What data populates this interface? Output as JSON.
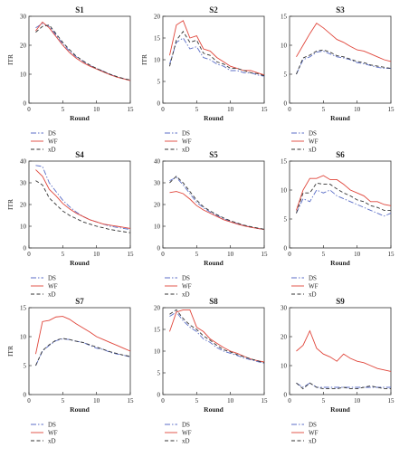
{
  "chart_data": [
    {
      "type": "line",
      "title": "S1",
      "xlabel": "Round",
      "ylabel": "ITR",
      "xlim": [
        0,
        15
      ],
      "ylim": [
        0,
        30
      ],
      "xticks": [
        0,
        5,
        10,
        15
      ],
      "yticks": [
        0,
        10,
        20,
        30
      ],
      "x": [
        1,
        2,
        3,
        4,
        5,
        6,
        7,
        8,
        9,
        10,
        11,
        12,
        13,
        14,
        15
      ],
      "series": [
        {
          "name": "DS",
          "values": [
            26,
            27.5,
            26.5,
            23.5,
            20.5,
            18,
            16,
            14.5,
            13,
            12,
            11,
            10,
            9,
            8.5,
            7.8
          ]
        },
        {
          "name": "WF",
          "values": [
            25,
            28,
            26,
            23,
            20,
            17.5,
            15.5,
            14,
            12.8,
            11.8,
            10.8,
            9.8,
            9,
            8.4,
            7.8
          ]
        },
        {
          "name": "xD",
          "values": [
            24.5,
            26.5,
            27,
            24,
            21,
            18.5,
            16.2,
            14.6,
            13.2,
            12,
            11,
            10,
            9.2,
            8.5,
            8
          ]
        }
      ]
    },
    {
      "type": "line",
      "title": "S2",
      "xlabel": "Round",
      "ylabel": "ITR",
      "xlim": [
        0,
        15
      ],
      "ylim": [
        0,
        20
      ],
      "xticks": [
        0,
        5,
        10,
        15
      ],
      "yticks": [
        0,
        5,
        10,
        15,
        20
      ],
      "x": [
        1,
        2,
        3,
        4,
        5,
        6,
        7,
        8,
        9,
        10,
        11,
        12,
        13,
        14,
        15
      ],
      "series": [
        {
          "name": "DS",
          "values": [
            9,
            14,
            15,
            12.5,
            13,
            10.5,
            10,
            9,
            8.5,
            7.5,
            7.5,
            7,
            7,
            6.5,
            6.2
          ]
        },
        {
          "name": "WF",
          "values": [
            11,
            18,
            19,
            15,
            15.5,
            12.5,
            12,
            10.5,
            9.5,
            8.5,
            8,
            7.5,
            7.5,
            7,
            6.5
          ]
        },
        {
          "name": "xD",
          "values": [
            8.5,
            14.5,
            16.5,
            14,
            14.5,
            11.5,
            11,
            9.5,
            9,
            8,
            8,
            7.5,
            7,
            6.8,
            6.3
          ]
        }
      ]
    },
    {
      "type": "line",
      "title": "S3",
      "xlabel": "Round",
      "ylabel": "",
      "xlim": [
        0,
        15
      ],
      "ylim": [
        0,
        15
      ],
      "xticks": [
        0,
        5,
        10,
        15
      ],
      "yticks": [
        0,
        5,
        10,
        15
      ],
      "x": [
        1,
        2,
        3,
        4,
        5,
        6,
        7,
        8,
        9,
        10,
        11,
        12,
        13,
        14,
        15
      ],
      "series": [
        {
          "name": "DS",
          "values": [
            5,
            7.5,
            8,
            8.8,
            9,
            8.5,
            8,
            7.8,
            7.5,
            7,
            6.8,
            6.5,
            6.2,
            6,
            6
          ]
        },
        {
          "name": "WF",
          "values": [
            8,
            10,
            12,
            13.8,
            13,
            12,
            11,
            10.5,
            9.8,
            9.2,
            9,
            8.5,
            8,
            7.5,
            7.2
          ]
        },
        {
          "name": "xD",
          "values": [
            5,
            7.8,
            8.3,
            9,
            9.2,
            8.8,
            8.2,
            8,
            7.6,
            7.2,
            7,
            6.6,
            6.4,
            6.2,
            6
          ]
        }
      ]
    },
    {
      "type": "line",
      "title": "S4",
      "xlabel": "Round",
      "ylabel": "ITR",
      "xlim": [
        0,
        15
      ],
      "ylim": [
        0,
        40
      ],
      "xticks": [
        0,
        5,
        10,
        15
      ],
      "yticks": [
        0,
        10,
        20,
        30,
        40
      ],
      "x": [
        1,
        2,
        3,
        4,
        5,
        6,
        7,
        8,
        9,
        10,
        11,
        12,
        13,
        14,
        15
      ],
      "series": [
        {
          "name": "DS",
          "values": [
            38,
            37.5,
            30,
            26,
            22,
            19,
            16.5,
            14.5,
            13,
            12,
            11,
            10,
            9.5,
            9,
            8.5
          ]
        },
        {
          "name": "WF",
          "values": [
            36,
            33,
            27,
            24,
            20.5,
            18,
            16,
            14.5,
            13,
            12,
            11,
            10.5,
            10,
            9.5,
            9
          ]
        },
        {
          "name": "xD",
          "values": [
            31,
            29,
            23,
            20,
            17,
            15,
            13.5,
            12,
            11,
            10,
            9.3,
            8.5,
            8,
            7.5,
            7
          ]
        }
      ]
    },
    {
      "type": "line",
      "title": "S5",
      "xlabel": "Round",
      "ylabel": "",
      "xlim": [
        0,
        15
      ],
      "ylim": [
        0,
        40
      ],
      "xticks": [
        0,
        5,
        10,
        15
      ],
      "yticks": [
        0,
        10,
        20,
        30,
        40
      ],
      "x": [
        1,
        2,
        3,
        4,
        5,
        6,
        7,
        8,
        9,
        10,
        11,
        12,
        13,
        14,
        15
      ],
      "series": [
        {
          "name": "DS",
          "values": [
            31,
            32.5,
            29,
            25,
            21,
            18.5,
            16.5,
            15,
            13.5,
            12.3,
            11.3,
            10.4,
            9.6,
            9,
            8.5
          ]
        },
        {
          "name": "WF",
          "values": [
            25.5,
            26,
            25,
            22.5,
            19.5,
            17.5,
            16,
            14.5,
            13,
            12,
            11,
            10.2,
            9.5,
            9,
            8.5
          ]
        },
        {
          "name": "xD",
          "values": [
            30,
            33,
            30,
            26,
            22,
            19,
            17,
            15.3,
            13.8,
            12.5,
            11.5,
            10.5,
            9.8,
            9.2,
            8.6
          ]
        }
      ]
    },
    {
      "type": "line",
      "title": "S6",
      "xlabel": "Round",
      "ylabel": "",
      "xlim": [
        0,
        15
      ],
      "ylim": [
        0,
        15
      ],
      "xticks": [
        0,
        5,
        10,
        15
      ],
      "yticks": [
        0,
        5,
        10,
        15
      ],
      "x": [
        1,
        2,
        3,
        4,
        5,
        6,
        7,
        8,
        9,
        10,
        11,
        12,
        13,
        14,
        15
      ],
      "series": [
        {
          "name": "DS",
          "values": [
            6,
            8.5,
            8,
            10,
            9.5,
            10,
            9,
            8.5,
            8,
            7.5,
            7,
            6.5,
            6,
            5.5,
            6
          ]
        },
        {
          "name": "WF",
          "values": [
            6.5,
            10,
            12,
            12,
            12.5,
            11.8,
            11.8,
            11,
            10,
            9.5,
            9,
            8,
            8,
            7.5,
            7.3
          ]
        },
        {
          "name": "xD",
          "values": [
            6,
            9.5,
            9.5,
            11.2,
            11,
            11,
            10.2,
            9.5,
            9,
            8.3,
            8,
            7.3,
            7,
            6.5,
            6.5
          ]
        }
      ]
    },
    {
      "type": "line",
      "title": "S7",
      "xlabel": "Round",
      "ylabel": "ITR",
      "xlim": [
        0,
        15
      ],
      "ylim": [
        0,
        15
      ],
      "xticks": [
        0,
        5,
        10,
        15
      ],
      "yticks": [
        0,
        5,
        10,
        15
      ],
      "x": [
        1,
        2,
        3,
        4,
        5,
        6,
        7,
        8,
        9,
        10,
        11,
        12,
        13,
        14,
        15
      ],
      "series": [
        {
          "name": "DS",
          "values": [
            5,
            7.5,
            8.5,
            9.3,
            9.6,
            9.5,
            9.2,
            9,
            8.5,
            8,
            7.8,
            7.3,
            7,
            6.8,
            6.5
          ]
        },
        {
          "name": "WF",
          "values": [
            7,
            12.6,
            12.8,
            13.4,
            13.5,
            13,
            12.2,
            11.5,
            10.8,
            10,
            9.5,
            9,
            8.5,
            8,
            7.5
          ]
        },
        {
          "name": "xD",
          "values": [
            5,
            7.6,
            8.6,
            9.4,
            9.7,
            9.5,
            9.2,
            9,
            8.6,
            8.2,
            7.8,
            7.4,
            7.1,
            6.8,
            6.6
          ]
        }
      ]
    },
    {
      "type": "line",
      "title": "S8",
      "xlabel": "Round",
      "ylabel": "",
      "xlim": [
        0,
        15
      ],
      "ylim": [
        0,
        20
      ],
      "xticks": [
        0,
        5,
        10,
        15
      ],
      "yticks": [
        0,
        5,
        10,
        15,
        20
      ],
      "x": [
        1,
        2,
        3,
        4,
        5,
        6,
        7,
        8,
        9,
        10,
        11,
        12,
        13,
        14,
        15
      ],
      "series": [
        {
          "name": "DS",
          "values": [
            18,
            19,
            17,
            15.5,
            14.5,
            12.8,
            12,
            10.8,
            10,
            9.5,
            9,
            8.4,
            8,
            7.6,
            7.2
          ]
        },
        {
          "name": "WF",
          "values": [
            14.5,
            19,
            19.5,
            19.5,
            15.5,
            14.5,
            12.8,
            11.8,
            10.8,
            10,
            9.5,
            8.8,
            8.2,
            7.8,
            7.5
          ]
        },
        {
          "name": "xD",
          "values": [
            18.5,
            19.5,
            17.5,
            16,
            15,
            13.5,
            12.5,
            11.3,
            10.3,
            9.8,
            9.2,
            8.7,
            8.2,
            7.8,
            7.3
          ]
        }
      ]
    },
    {
      "type": "line",
      "title": "S9",
      "xlabel": "Round",
      "ylabel": "",
      "xlim": [
        0,
        15
      ],
      "ylim": [
        0,
        30
      ],
      "xticks": [
        0,
        5,
        10,
        15
      ],
      "yticks": [
        0,
        10,
        20,
        30
      ],
      "x": [
        1,
        2,
        3,
        4,
        5,
        6,
        7,
        8,
        9,
        10,
        11,
        12,
        13,
        14,
        15
      ],
      "series": [
        {
          "name": "DS",
          "values": [
            4,
            2.5,
            4,
            2.5,
            2.5,
            2.5,
            2.5,
            2.5,
            2.5,
            2.5,
            2.5,
            2.5,
            2.5,
            2.5,
            2.5
          ]
        },
        {
          "name": "WF",
          "values": [
            15,
            17,
            22,
            16,
            14,
            13,
            11.5,
            14,
            12.5,
            11.5,
            11,
            10,
            9,
            8.5,
            8
          ]
        },
        {
          "name": "xD",
          "values": [
            4,
            2,
            4,
            2.5,
            2,
            2,
            2,
            2.5,
            2,
            2,
            2.5,
            3,
            2.5,
            2,
            2
          ]
        }
      ]
    }
  ],
  "styles": {
    "DS": {
      "color": "#5b6ec7",
      "dash": "6,2,1.5,2"
    },
    "WF": {
      "color": "#e0453a",
      "dash": ""
    },
    "xD": {
      "color": "#333333",
      "dash": "4,2.5"
    }
  }
}
